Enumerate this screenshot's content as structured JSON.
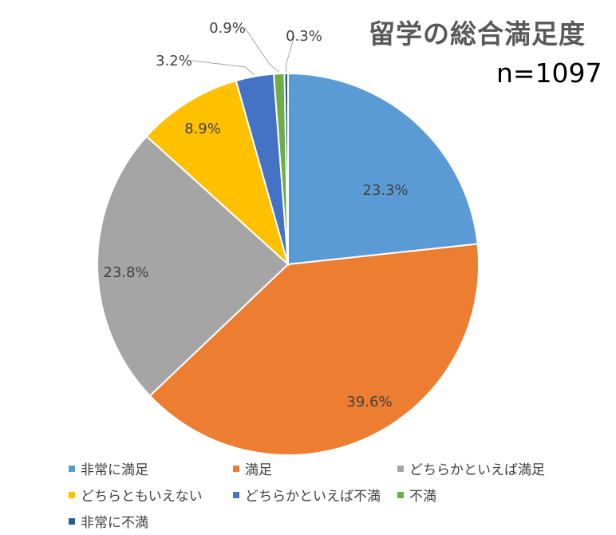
{
  "chart_data": {
    "type": "pie",
    "title": "留学の総合満足度",
    "subtitle": "n=1097",
    "categories": [
      "非常に満足",
      "満足",
      "どちらかといえば満足",
      "どちらともいえない",
      "どちらかといえば不満",
      "不満",
      "非常に不満"
    ],
    "values": [
      23.3,
      39.6,
      23.8,
      8.9,
      3.2,
      0.9,
      0.3
    ],
    "data_labels": [
      "23.3%",
      "39.6%",
      "23.8%",
      "8.9%",
      "3.2%",
      "0.9%",
      "0.3%"
    ],
    "colors": [
      "#5B9BD5",
      "#ED7D31",
      "#A5A5A5",
      "#FFC000",
      "#4472C4",
      "#70AD47",
      "#255E91"
    ],
    "start": "12 o'clock",
    "direction": "clockwise",
    "legend": "bottom"
  }
}
